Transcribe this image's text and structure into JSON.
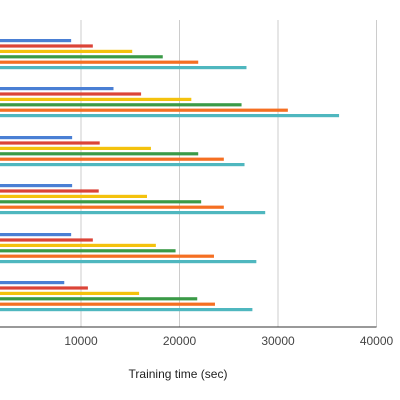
{
  "chart_data": {
    "type": "bar",
    "orientation": "horizontal",
    "xlabel": "Training time (sec)",
    "xlim": [
      -8000,
      40000
    ],
    "x_ticks": [
      10000,
      20000,
      30000,
      40000
    ],
    "x_tick_labels": [
      "10000",
      "20000",
      "30000",
      "40000"
    ],
    "grid": "vertical",
    "series_colors": [
      "#4a7fd4",
      "#db4437",
      "#f4c20d",
      "#3a9a47",
      "#f56f22",
      "#4fb7bf"
    ],
    "groups": [
      {
        "values": [
          9000,
          11200,
          15200,
          18300,
          21900,
          26800
        ]
      },
      {
        "values": [
          13300,
          16100,
          21200,
          26300,
          31000,
          36200
        ]
      },
      {
        "values": [
          9100,
          11900,
          17100,
          21900,
          24500,
          26600
        ]
      },
      {
        "values": [
          9100,
          11800,
          16700,
          22200,
          24500,
          28700
        ]
      },
      {
        "values": [
          9000,
          11200,
          17600,
          19600,
          23500,
          27800
        ]
      },
      {
        "values": [
          8300,
          10700,
          15900,
          21800,
          23600,
          27400
        ]
      }
    ]
  }
}
